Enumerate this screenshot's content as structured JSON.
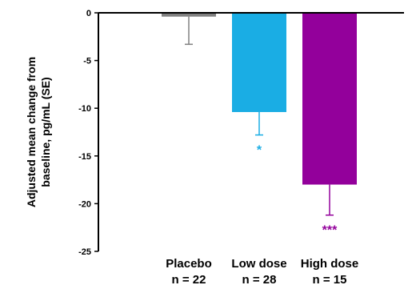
{
  "chart_data": {
    "type": "bar",
    "ylabel": [
      "Adjusted mean change from",
      "baseline, pg/mL (SE)"
    ],
    "ylim": [
      -25,
      0
    ],
    "yticks": [
      0,
      -5,
      -10,
      -15,
      -20,
      -25
    ],
    "grid": false,
    "categories": [
      {
        "name": "Placebo",
        "n_label": "n = 22",
        "value": -0.4,
        "se": 2.9,
        "color": "#808080",
        "significance": ""
      },
      {
        "name": "Low dose",
        "n_label": "n = 28",
        "value": -10.4,
        "se": 2.4,
        "color": "#1AADE4",
        "significance": "*"
      },
      {
        "name": "High dose",
        "n_label": "n = 15",
        "value": -18.0,
        "se": 3.2,
        "color": "#93009B",
        "significance": "***"
      }
    ]
  }
}
